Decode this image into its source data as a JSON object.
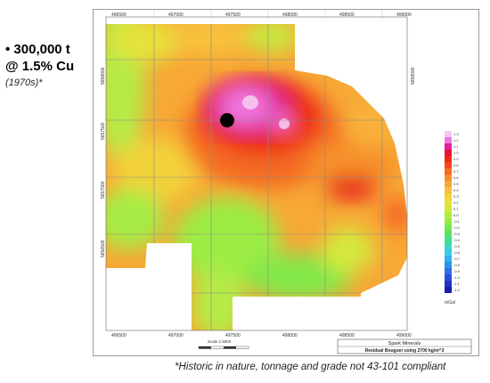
{
  "callout": {
    "line1": "• 300,000 t",
    "line2": "@ 1.5% Cu",
    "line3": "(1970s)*"
  },
  "map": {
    "x_ticks": [
      "496500",
      "497000",
      "497500",
      "498000",
      "498500",
      "499000"
    ],
    "y_ticks": [
      "5658000",
      "5657500",
      "5657000",
      "5656500"
    ],
    "scale_label": "Scale 1:5000",
    "company": "Spark Minerals",
    "subtitle": "Residual Bouguer using 2700 kg/m^3"
  },
  "colorbar": {
    "unit": "mGal",
    "labels": [
      "1.3",
      "1.2",
      "1.1",
      "1.0",
      "0.9",
      "0.8",
      "0.7",
      "0.6",
      "0.5",
      "0.4",
      "0.3",
      "0.2",
      "0.1",
      "0.0",
      "-0.1",
      "-0.2",
      "-0.3",
      "-0.4",
      "-0.5",
      "-0.6",
      "-0.7",
      "-0.8",
      "-0.9",
      "-1.0",
      "-1.1",
      "-1.2"
    ],
    "colors": [
      "#f7c8f0",
      "#ef77dd",
      "#e0219c",
      "#e8123c",
      "#f2261a",
      "#f4461a",
      "#f66a22",
      "#f68d2a",
      "#f7a836",
      "#f8bf3e",
      "#f2d23a",
      "#e6e23a",
      "#cfe93c",
      "#b2ec3e",
      "#94ec44",
      "#74e84c",
      "#55e266",
      "#41de92",
      "#3ad9c0",
      "#35cde6",
      "#30b2ec",
      "#2e91ea",
      "#2c6ee6",
      "#2a4ee0",
      "#2233cc",
      "#1a1ab0"
    ]
  },
  "footnote": "*Historic in nature, tonnage and grade not 43-101 compliant"
}
